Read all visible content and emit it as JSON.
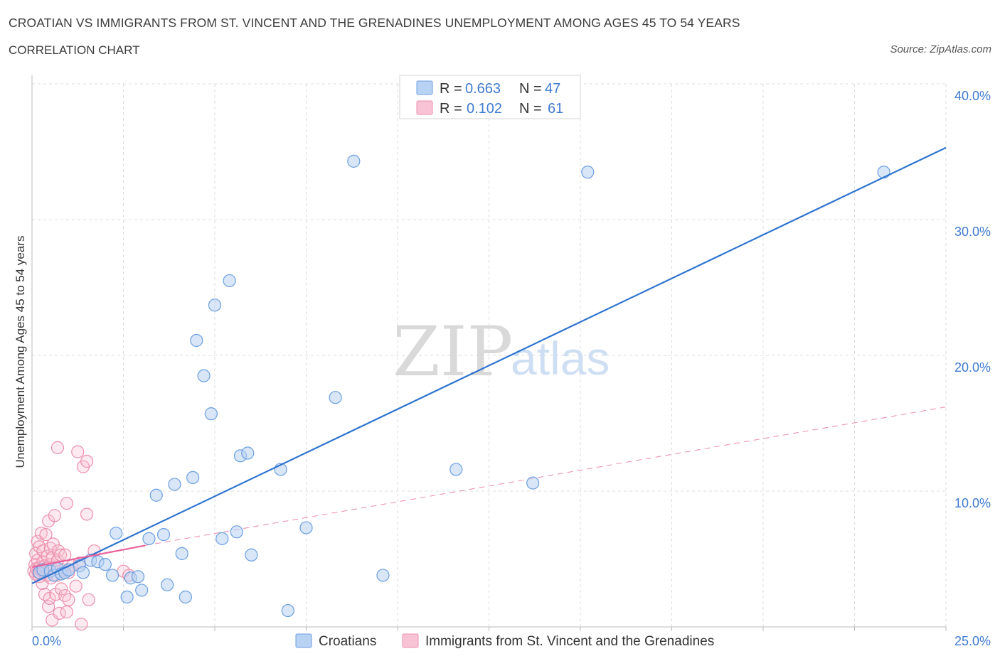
{
  "header": {
    "title": "CROATIAN VS IMMIGRANTS FROM ST. VINCENT AND THE GRENADINES UNEMPLOYMENT AMONG AGES 45 TO 54 YEARS",
    "subtitle": "CORRELATION CHART",
    "source": "Source: ZipAtlas.com"
  },
  "watermark": {
    "zip": "ZIP",
    "atlas": "atlas"
  },
  "colors": {
    "blue_fill": "#b8d2f3",
    "blue_stroke": "#6b9fe0",
    "blue_line": "#2f74d0",
    "pink_fill": "#f8c3d4",
    "pink_stroke": "#ec8fad",
    "pink_line": "#e8609a",
    "tick_text": "#3f7bd0",
    "grid": "#dcdcdc"
  },
  "legend": {
    "rows": [
      {
        "r_label": "R =",
        "r_value": "0.663",
        "n_label": "N =",
        "n_value": "47"
      },
      {
        "r_label": "R =",
        "r_value": "0.102",
        "n_label": "N =",
        "n_value": "61"
      }
    ],
    "bottom": [
      "Croatians",
      "Immigrants from St. Vincent and the Grenadines"
    ]
  },
  "chart_data": {
    "type": "scatter",
    "title": "CROATIAN VS IMMIGRANTS FROM ST. VINCENT AND THE GRENADINES UNEMPLOYMENT AMONG AGES 45 TO 54 YEARS",
    "xlabel": "",
    "ylabel": "Unemployment Among Ages 45 to 54 years",
    "xlim": [
      0,
      25
    ],
    "ylim": [
      0,
      40
    ],
    "x_tick_labels": [
      "0.0%",
      "25.0%"
    ],
    "y_ticks": [
      10,
      20,
      30,
      40
    ],
    "y_tick_labels": [
      "10.0%",
      "20.0%",
      "30.0%",
      "40.0%"
    ],
    "grid": true,
    "legend_position": "top-center",
    "series": [
      {
        "name": "Croatians",
        "R": 0.663,
        "N": 47,
        "trend": {
          "x": [
            0,
            25
          ],
          "y": [
            3.2,
            35.3
          ],
          "style": "solid"
        },
        "points": [
          [
            0.2,
            4.0
          ],
          [
            0.3,
            4.2
          ],
          [
            0.5,
            4.1
          ],
          [
            0.6,
            3.8
          ],
          [
            0.7,
            4.3
          ],
          [
            0.8,
            3.9
          ],
          [
            0.9,
            4.0
          ],
          [
            1.0,
            4.2
          ],
          [
            1.3,
            4.5
          ],
          [
            1.4,
            4.0
          ],
          [
            1.6,
            4.9
          ],
          [
            1.8,
            4.8
          ],
          [
            2.0,
            4.6
          ],
          [
            2.2,
            3.8
          ],
          [
            2.3,
            6.9
          ],
          [
            2.6,
            2.2
          ],
          [
            2.7,
            3.6
          ],
          [
            2.9,
            3.7
          ],
          [
            3.0,
            2.7
          ],
          [
            3.2,
            6.5
          ],
          [
            3.4,
            9.7
          ],
          [
            3.6,
            6.8
          ],
          [
            3.7,
            3.1
          ],
          [
            3.9,
            10.5
          ],
          [
            4.1,
            5.4
          ],
          [
            4.2,
            2.2
          ],
          [
            4.4,
            11.0
          ],
          [
            4.5,
            21.1
          ],
          [
            4.7,
            18.5
          ],
          [
            4.9,
            15.7
          ],
          [
            5.0,
            23.7
          ],
          [
            5.2,
            6.5
          ],
          [
            5.4,
            25.5
          ],
          [
            5.6,
            7.0
          ],
          [
            5.7,
            12.6
          ],
          [
            5.9,
            12.8
          ],
          [
            6.0,
            5.3
          ],
          [
            6.8,
            11.6
          ],
          [
            7.0,
            1.2
          ],
          [
            7.5,
            7.3
          ],
          [
            8.3,
            16.9
          ],
          [
            8.8,
            34.3
          ],
          [
            9.6,
            3.8
          ],
          [
            11.6,
            11.6
          ],
          [
            13.7,
            10.6
          ],
          [
            15.2,
            33.5
          ],
          [
            23.3,
            33.5
          ]
        ]
      },
      {
        "name": "Immigrants from St. Vincent and the Grenadines",
        "R": 0.102,
        "N": 61,
        "trend": {
          "x": [
            0,
            3.1
          ],
          "y": [
            4.4,
            6.0
          ],
          "style": "solid"
        },
        "trend_extension": {
          "x": [
            3.1,
            25
          ],
          "y": [
            6.0,
            16.2
          ],
          "style": "dashed"
        },
        "points": [
          [
            0.05,
            4.1
          ],
          [
            0.08,
            4.6
          ],
          [
            0.1,
            3.9
          ],
          [
            0.1,
            5.4
          ],
          [
            0.12,
            4.3
          ],
          [
            0.15,
            6.3
          ],
          [
            0.15,
            4.9
          ],
          [
            0.18,
            4.0
          ],
          [
            0.2,
            3.7
          ],
          [
            0.2,
            5.9
          ],
          [
            0.22,
            4.4
          ],
          [
            0.25,
            6.9
          ],
          [
            0.25,
            4.2
          ],
          [
            0.28,
            3.2
          ],
          [
            0.3,
            4.8
          ],
          [
            0.3,
            5.6
          ],
          [
            0.32,
            4.0
          ],
          [
            0.35,
            4.5
          ],
          [
            0.35,
            2.4
          ],
          [
            0.38,
            6.8
          ],
          [
            0.4,
            3.8
          ],
          [
            0.4,
            4.3
          ],
          [
            0.42,
            5.2
          ],
          [
            0.45,
            7.8
          ],
          [
            0.45,
            1.5
          ],
          [
            0.48,
            2.1
          ],
          [
            0.5,
            4.6
          ],
          [
            0.5,
            5.8
          ],
          [
            0.52,
            3.6
          ],
          [
            0.55,
            0.5
          ],
          [
            0.55,
            5.1
          ],
          [
            0.58,
            6.1
          ],
          [
            0.6,
            4.4
          ],
          [
            0.62,
            8.2
          ],
          [
            0.65,
            2.4
          ],
          [
            0.68,
            3.8
          ],
          [
            0.7,
            4.9
          ],
          [
            0.72,
            5.6
          ],
          [
            0.7,
            13.2
          ],
          [
            0.75,
            1.0
          ],
          [
            0.78,
            5.3
          ],
          [
            0.8,
            2.8
          ],
          [
            0.85,
            4.2
          ],
          [
            0.9,
            2.3
          ],
          [
            0.9,
            5.3
          ],
          [
            0.95,
            1.1
          ],
          [
            0.95,
            9.1
          ],
          [
            1.0,
            2.0
          ],
          [
            1.0,
            4.0
          ],
          [
            1.1,
            4.5
          ],
          [
            1.2,
            3.0
          ],
          [
            1.25,
            12.9
          ],
          [
            1.3,
            4.7
          ],
          [
            1.35,
            0.2
          ],
          [
            1.4,
            11.8
          ],
          [
            1.5,
            12.2
          ],
          [
            1.5,
            8.3
          ],
          [
            1.55,
            2.0
          ],
          [
            1.7,
            5.6
          ],
          [
            2.5,
            4.1
          ],
          [
            2.65,
            3.8
          ]
        ]
      }
    ]
  }
}
